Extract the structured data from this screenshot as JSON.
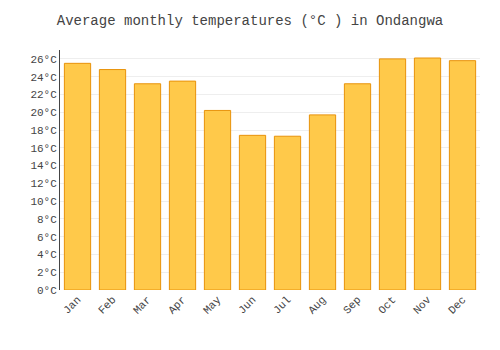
{
  "chart_data": {
    "type": "bar",
    "title": "Average monthly temperatures (°C ) in Ondangwa",
    "categories": [
      "Jan",
      "Feb",
      "Mar",
      "Apr",
      "May",
      "Jun",
      "Jul",
      "Aug",
      "Sep",
      "Oct",
      "Nov",
      "Dec"
    ],
    "values": [
      25.5,
      24.8,
      23.2,
      23.5,
      20.2,
      17.4,
      17.3,
      19.7,
      23.2,
      26.0,
      26.1,
      25.8
    ],
    "color": "#FFC94A",
    "ylim": [
      0,
      27
    ],
    "yticks": [
      {
        "value": 0,
        "label": "0°C"
      },
      {
        "value": 2,
        "label": "2°C"
      },
      {
        "value": 4,
        "label": "4°C"
      },
      {
        "value": 6,
        "label": "6°C"
      },
      {
        "value": 8,
        "label": "8°C"
      },
      {
        "value": 10,
        "label": "10°C"
      },
      {
        "value": 12,
        "label": "12°C"
      },
      {
        "value": 14,
        "label": "14°C"
      },
      {
        "value": 16,
        "label": "16°C"
      },
      {
        "value": 18,
        "label": "18°C"
      },
      {
        "value": 20,
        "label": "20°C"
      },
      {
        "value": 22,
        "label": "22°C"
      },
      {
        "value": 24,
        "label": "24°C"
      },
      {
        "value": 26,
        "label": "26°C"
      }
    ],
    "grid": true
  }
}
